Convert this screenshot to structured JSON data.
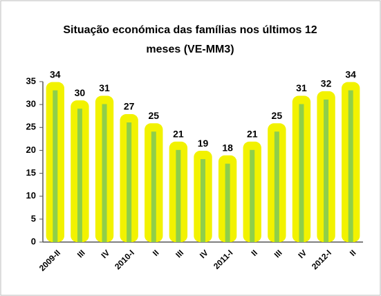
{
  "chart_data": {
    "type": "bar",
    "title": [
      "Situação económica das famílias nos últimos 12",
      "meses (VE-MM3)"
    ],
    "categories": [
      "2009-II",
      "III",
      "IV",
      "2010-I",
      "II",
      "III",
      "IV",
      "2011-I",
      "II",
      "III",
      "IV",
      "2012-I",
      "II"
    ],
    "values": [
      34,
      30,
      31,
      27,
      25,
      21,
      19,
      18,
      21,
      25,
      31,
      32,
      34
    ],
    "color": "#f2f200",
    "stripe_color": "#8fcf4a",
    "ylim": [
      0,
      35
    ],
    "yticks": [
      0,
      5,
      10,
      15,
      20,
      25,
      30,
      35
    ],
    "grid": false
  }
}
